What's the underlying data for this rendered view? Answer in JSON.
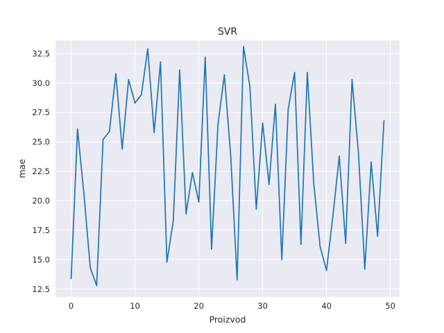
{
  "chart_data": {
    "type": "line",
    "title": "SVR",
    "xlabel": "Proizvod",
    "ylabel": "mae",
    "xlim": [
      -2.45,
      51.45
    ],
    "ylim": [
      11.84,
      33.64
    ],
    "xticks": [
      0,
      10,
      20,
      30,
      40,
      50
    ],
    "xtick_labels": [
      "0",
      "10",
      "20",
      "30",
      "40",
      "50"
    ],
    "yticks": [
      12.5,
      15.0,
      17.5,
      20.0,
      22.5,
      25.0,
      27.5,
      30.0,
      32.5
    ],
    "ytick_labels": [
      "12.5",
      "15.0",
      "17.5",
      "20.0",
      "22.5",
      "25.0",
      "27.5",
      "30.0",
      "32.5"
    ],
    "grid": true,
    "series": [
      {
        "name": "mae",
        "color": "#1f77b4",
        "x": [
          0,
          1,
          2,
          3,
          4,
          5,
          6,
          7,
          8,
          9,
          10,
          11,
          12,
          13,
          14,
          15,
          16,
          17,
          18,
          19,
          20,
          21,
          22,
          23,
          24,
          25,
          26,
          27,
          28,
          29,
          30,
          31,
          32,
          33,
          34,
          35,
          36,
          37,
          38,
          39,
          40,
          41,
          42,
          43,
          44,
          45,
          46,
          47,
          48,
          49
        ],
        "values": [
          13.4,
          26.1,
          20.6,
          14.3,
          12.8,
          25.2,
          25.9,
          30.8,
          24.4,
          30.3,
          28.3,
          29.0,
          32.9,
          25.8,
          31.8,
          14.8,
          18.3,
          31.1,
          18.9,
          22.4,
          19.9,
          32.2,
          15.9,
          26.5,
          30.7,
          23.8,
          13.3,
          33.1,
          29.7,
          19.3,
          26.6,
          21.4,
          28.2,
          15.0,
          27.8,
          30.9,
          16.3,
          30.9,
          21.5,
          16.1,
          14.1,
          18.7,
          23.8,
          16.4,
          30.3,
          24.1,
          14.2,
          23.3,
          17.0,
          26.8
        ]
      }
    ]
  },
  "style": {
    "axes_background": "#eaeaf2",
    "grid_color": "#ffffff",
    "text_color": "#262626"
  }
}
